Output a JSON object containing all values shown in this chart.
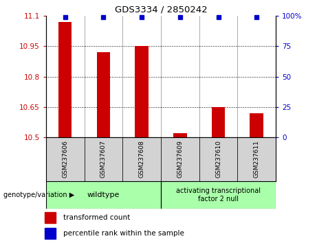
{
  "title": "GDS3334 / 2850242",
  "samples": [
    "GSM237606",
    "GSM237607",
    "GSM237608",
    "GSM237609",
    "GSM237610",
    "GSM237611"
  ],
  "bar_values": [
    11.07,
    10.92,
    10.95,
    10.52,
    10.65,
    10.62
  ],
  "percentile_values": [
    99,
    99,
    99,
    99,
    99,
    99
  ],
  "bar_color": "#cc0000",
  "dot_color": "#0000cc",
  "ylim_left": [
    10.5,
    11.1
  ],
  "ylim_right": [
    0,
    100
  ],
  "yticks_left": [
    10.5,
    10.65,
    10.8,
    10.95,
    11.1
  ],
  "ytick_labels_left": [
    "10.5",
    "10.65",
    "10.8",
    "10.95",
    "11.1"
  ],
  "yticks_right": [
    0,
    25,
    50,
    75,
    100
  ],
  "ytick_labels_right": [
    "0",
    "25",
    "50",
    "75",
    "100%"
  ],
  "grid_values": [
    10.65,
    10.8,
    10.95
  ],
  "groups": [
    {
      "label": "wildtype",
      "start": 0,
      "end": 2,
      "color": "#aaffaa"
    },
    {
      "label": "activating transcriptional\nfactor 2 null",
      "start": 3,
      "end": 5,
      "color": "#aaffaa"
    }
  ],
  "xlabel_left": "genotype/variation",
  "legend_items": [
    {
      "color": "#cc0000",
      "label": "transformed count"
    },
    {
      "color": "#0000cc",
      "label": "percentile rank within the sample"
    }
  ],
  "background_color": "#ffffff",
  "tick_color_left": "#cc0000",
  "tick_color_right": "#0000cc",
  "sample_box_color": "#d3d3d3",
  "bar_width": 0.35
}
